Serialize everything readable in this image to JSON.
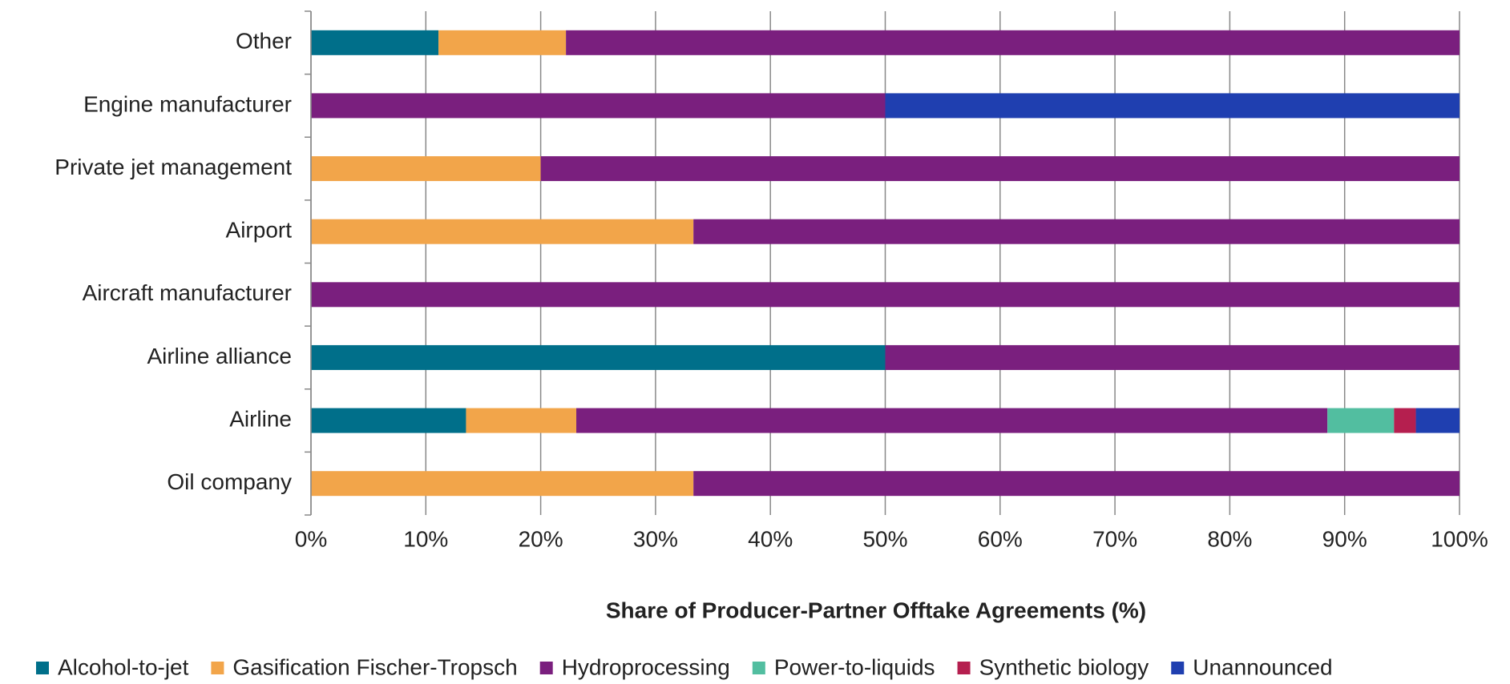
{
  "chart_data": {
    "type": "stacked_barh",
    "x_label": "Share of Producer-Partner Offtake Agreements (%)",
    "categories": [
      "Other",
      "Engine manufacturer",
      "Private jet management",
      "Airport",
      "Aircraft manufacturer",
      "Airline alliance",
      "Airline",
      "Oil company"
    ],
    "series": [
      {
        "name": "Alcohol-to-jet",
        "color": "#006f8a",
        "values": [
          11.1,
          0,
          0,
          0,
          0,
          50,
          13.5,
          0
        ]
      },
      {
        "name": "Gasification Fischer-Tropsch",
        "color": "#f2a54a",
        "values": [
          11.1,
          0,
          20,
          33.3,
          0,
          0,
          9.6,
          33.3
        ]
      },
      {
        "name": "Hydroprocessing",
        "color": "#7a1f7e",
        "values": [
          77.8,
          50,
          80,
          66.7,
          100,
          50,
          65.4,
          66.7
        ]
      },
      {
        "name": "Power-to-liquids",
        "color": "#52bea0",
        "values": [
          0,
          0,
          0,
          0,
          0,
          0,
          5.8,
          0
        ]
      },
      {
        "name": "Synthetic biology",
        "color": "#b51f4f",
        "values": [
          0,
          0,
          0,
          0,
          0,
          0,
          1.9,
          0
        ]
      },
      {
        "name": "Unannounced",
        "color": "#1f3fb0",
        "values": [
          0,
          50,
          0,
          0,
          0,
          0,
          3.8,
          0
        ]
      }
    ],
    "xlim": [
      0,
      100
    ],
    "xticks": [
      {
        "value": 0,
        "label": "0%"
      },
      {
        "value": 10,
        "label": "10%"
      },
      {
        "value": 20,
        "label": "20%"
      },
      {
        "value": 30,
        "label": "30%"
      },
      {
        "value": 40,
        "label": "40%"
      },
      {
        "value": 50,
        "label": "50%"
      },
      {
        "value": 60,
        "label": "60%"
      },
      {
        "value": 70,
        "label": "70%"
      },
      {
        "value": 80,
        "label": "80%"
      },
      {
        "value": 90,
        "label": "90%"
      },
      {
        "value": 100,
        "label": "100%"
      }
    ],
    "grid": true,
    "legend": "bottom"
  }
}
